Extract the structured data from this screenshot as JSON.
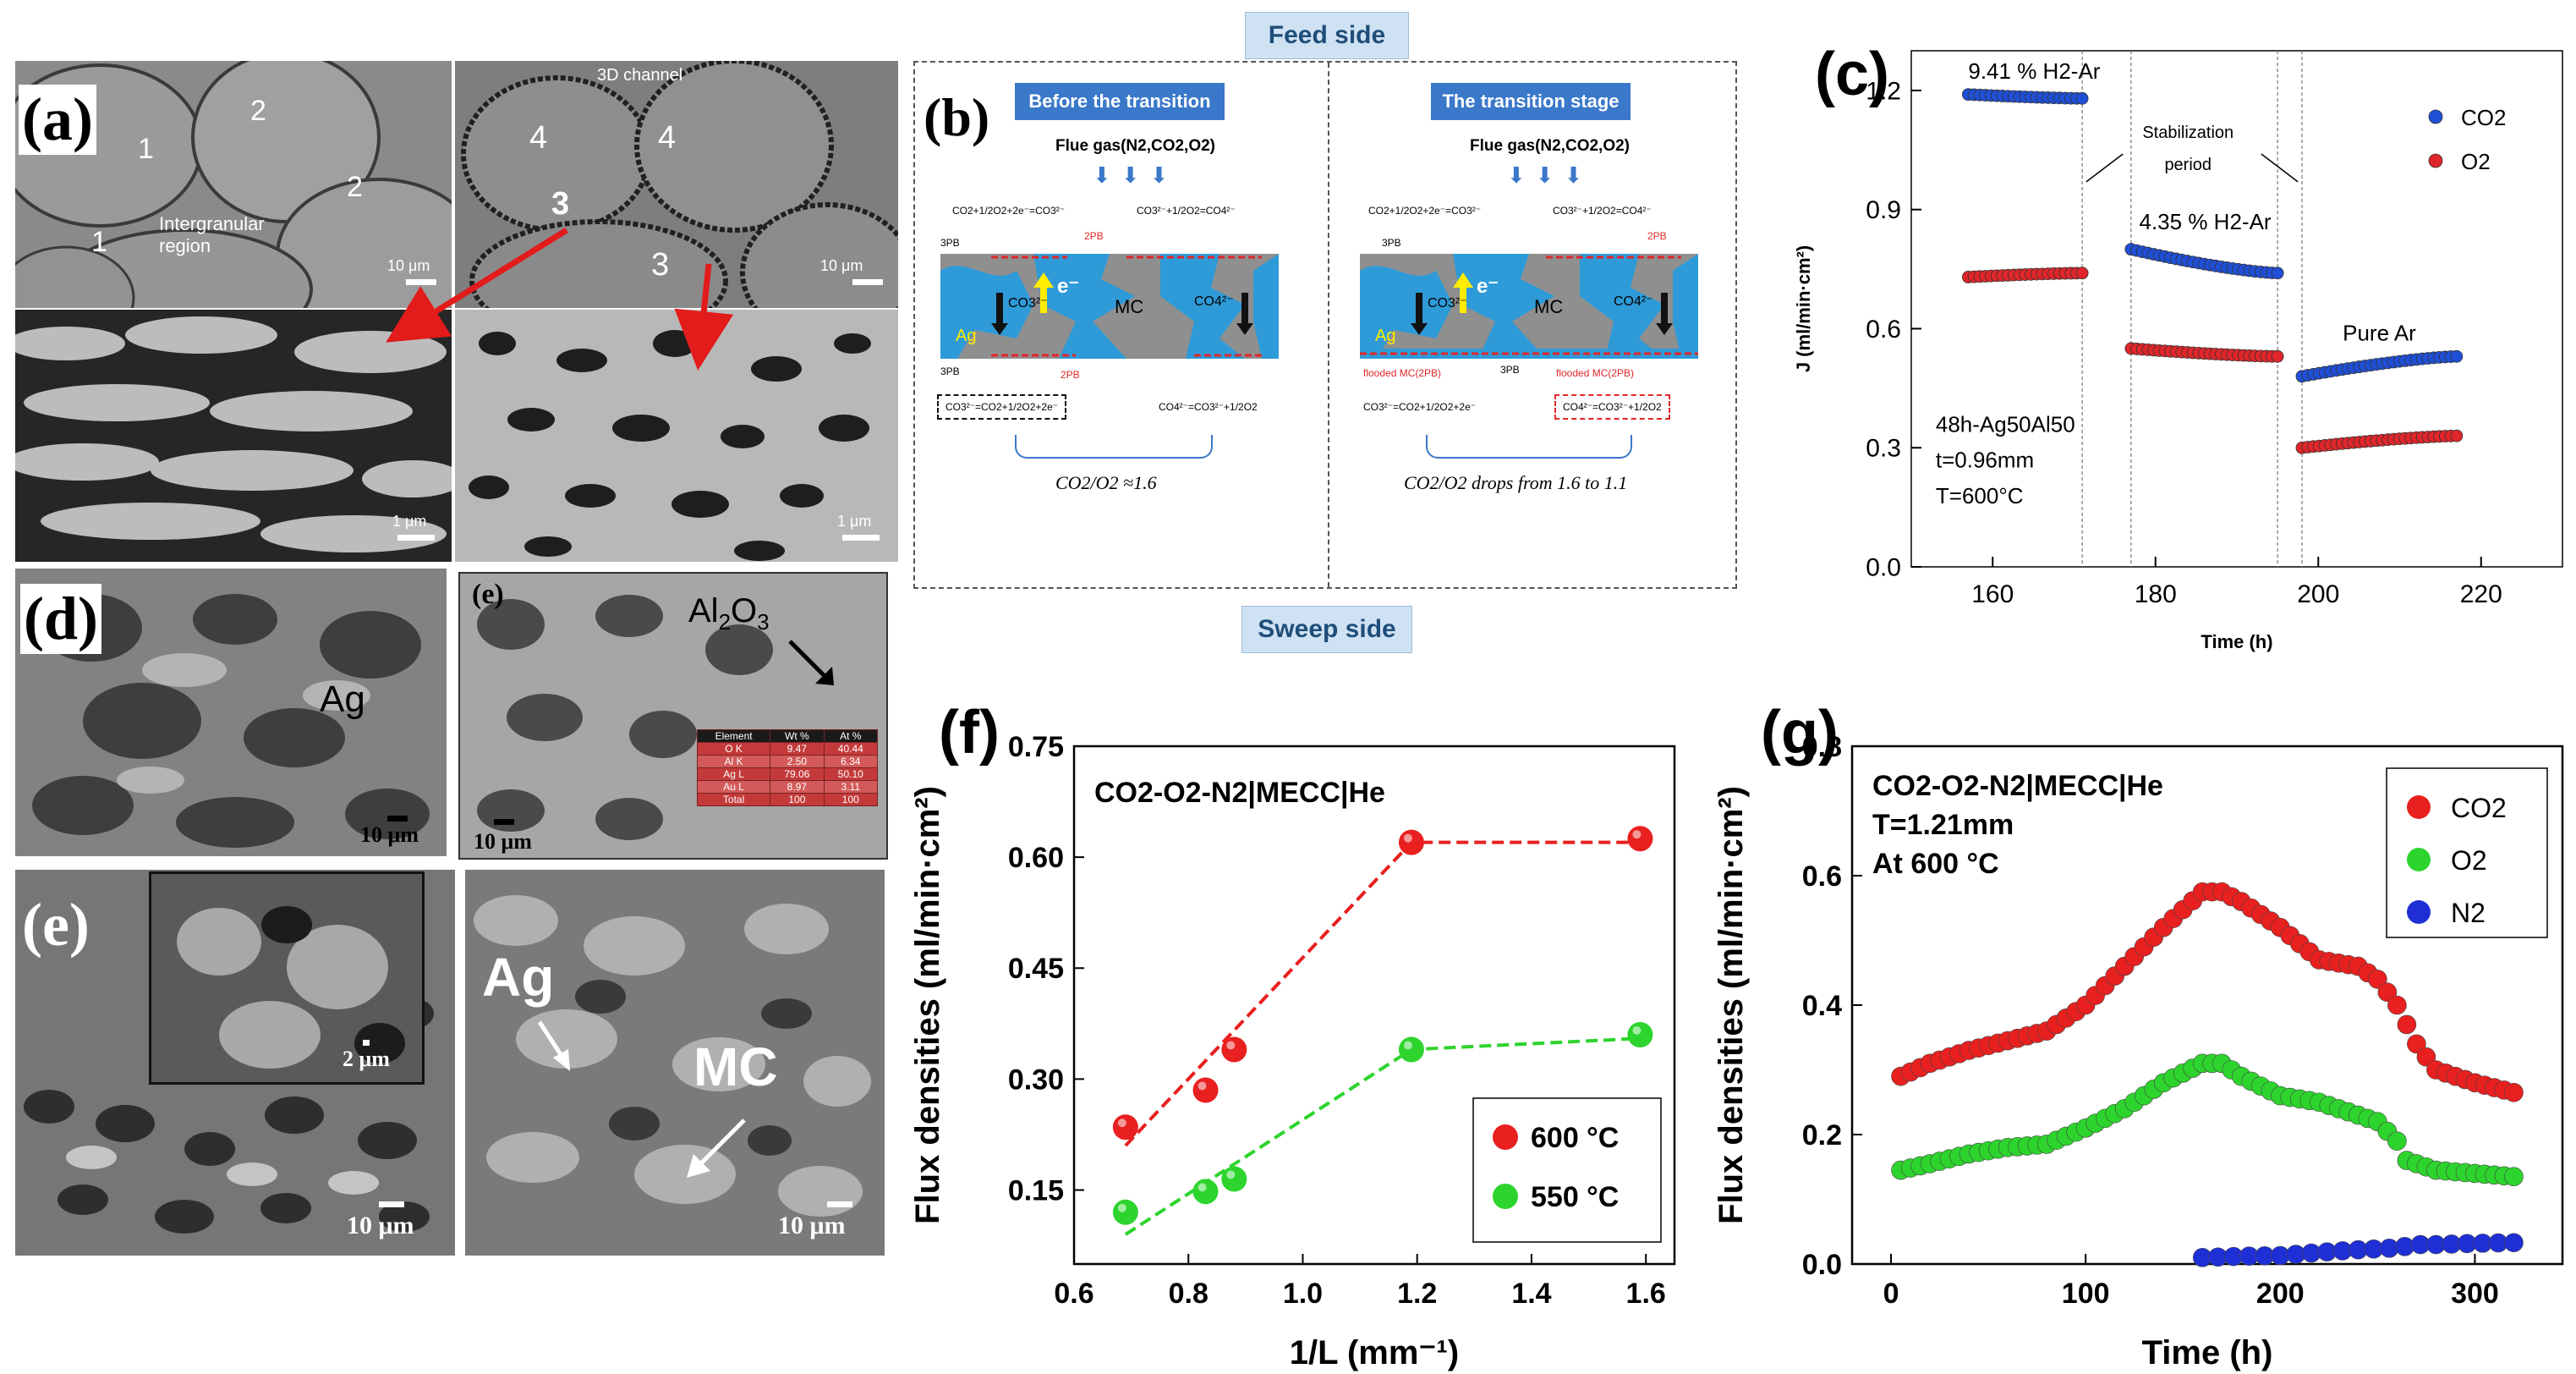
{
  "panel_labels": {
    "a": "(a)",
    "b": "(b)",
    "c": "(c)",
    "d": "(d)",
    "e": "(e)",
    "f": "(f)",
    "g": "(g)",
    "e_inset": "(e)"
  },
  "panel_a": {
    "left": {
      "labels": [
        "1",
        "2",
        "2",
        "1"
      ],
      "region": "Intergranular",
      "region2": "region",
      "scale": "10 μm"
    },
    "right": {
      "channel": "3D channel",
      "labels": [
        "4",
        "4",
        "3",
        "3"
      ],
      "scale": "10 μm"
    },
    "zoom_scales": [
      "1 μm",
      "1 μm"
    ]
  },
  "panel_d": {
    "ag": "Ag",
    "scale": "10 μm",
    "scale2": "10 μm",
    "al2o3": "Al2O3",
    "eds": {
      "headers": [
        "Element",
        "Wt %",
        "At %"
      ],
      "rows": [
        [
          "O K",
          "9.47",
          "40.44"
        ],
        [
          "Al K",
          "2.50",
          "6.34"
        ],
        [
          "Ag L",
          "79.06",
          "50.10"
        ],
        [
          "Au L",
          "8.97",
          "3.11"
        ],
        [
          "Total",
          "100",
          "100"
        ]
      ]
    }
  },
  "panel_e": {
    "inset_scale": "2 μm",
    "scale": "10 μm",
    "scale2": "10 μm",
    "ag": "Ag",
    "mc": "MC"
  },
  "panel_b": {
    "feed_side": "Feed side",
    "sweep_side": "Sweep side",
    "left_header": "Before the transition",
    "right_header": "The transition stage",
    "flue_gas": "Flue gas(N2,CO2,O2)",
    "reaction1": "CO2+1/2O2+2e⁻=CO3²⁻",
    "reaction2": "CO3²⁻+1/2O2=CO4²⁻",
    "reaction3": "CO3²⁻=CO2+1/2O2+2e⁻",
    "reaction4": "CO4²⁻=CO3²⁻+1/2O2",
    "tpb": "3PB",
    "dpb": "2PB",
    "mc": "MC",
    "ag": "Ag",
    "e": "e⁻",
    "co3": "CO3²⁻",
    "co4": "CO4²⁻",
    "flooded": "flooded MC(2PB)",
    "ratio_left": "CO2/O2 ≈1.6",
    "ratio_right": "CO2/O2 drops from 1.6 to 1.1"
  },
  "chart_data": [
    {
      "id": "c",
      "type": "scatter",
      "title": "",
      "xlabel": "Time (h)",
      "ylabel": "J (ml/min·cm²)",
      "xlim": [
        150,
        230
      ],
      "ylim": [
        0,
        1.3
      ],
      "xticks": [
        160,
        180,
        200,
        220
      ],
      "yticks": [
        0.0,
        0.3,
        0.6,
        0.9,
        1.2
      ],
      "series": [
        {
          "name": "CO2",
          "color": "#1f4fd6",
          "segments": [
            {
              "x0": 157,
              "x1": 171,
              "y0": 1.19,
              "y1": 1.18
            },
            {
              "x0": 177,
              "x1": 195,
              "y0": 0.8,
              "y1": 0.74
            },
            {
              "x0": 198,
              "x1": 217,
              "y0": 0.48,
              "y1": 0.53
            }
          ]
        },
        {
          "name": "O2",
          "color": "#e0262a",
          "segments": [
            {
              "x0": 157,
              "x1": 171,
              "y0": 0.73,
              "y1": 0.74
            },
            {
              "x0": 177,
              "x1": 195,
              "y0": 0.55,
              "y1": 0.53
            },
            {
              "x0": 198,
              "x1": 217,
              "y0": 0.3,
              "y1": 0.33
            }
          ]
        }
      ],
      "vlines": [
        171,
        177,
        195,
        198
      ],
      "annotations": {
        "h9": "9.41 % H2-Ar",
        "h4": "4.35 % H2-Ar",
        "ar": "Pure Ar",
        "stab1": "Stabilization",
        "stab2": "period",
        "info1": "48h-Ag50Al50",
        "info2": "t=0.96mm",
        "info3": "T=600°C"
      }
    },
    {
      "id": "f",
      "type": "scatter",
      "xlabel": "1/L (mm⁻¹)",
      "ylabel": "Flux densities (ml/min·cm²)",
      "xlim": [
        0.6,
        1.65
      ],
      "ylim": [
        0.05,
        0.75
      ],
      "xticks": [
        0.6,
        0.8,
        1.0,
        1.2,
        1.4,
        1.6
      ],
      "yticks": [
        0.15,
        0.3,
        0.45,
        0.6,
        0.75
      ],
      "inset_title": "CO2-O2-N2|MECC|He",
      "series": [
        {
          "name": "600 °C",
          "color": "#e8201f",
          "x": [
            0.69,
            0.83,
            0.88,
            1.19,
            1.59
          ],
          "y": [
            0.235,
            0.285,
            0.34,
            0.62,
            0.625
          ],
          "fit": [
            [
              0.69,
              0.21
            ],
            [
              1.19,
              0.62
            ],
            [
              1.59,
              0.62
            ]
          ]
        },
        {
          "name": "550 °C",
          "color": "#2dd42d",
          "x": [
            0.69,
            0.83,
            0.88,
            1.19,
            1.59
          ],
          "y": [
            0.12,
            0.148,
            0.165,
            0.34,
            0.36
          ],
          "fit": [
            [
              0.69,
              0.09
            ],
            [
              1.19,
              0.34
            ],
            [
              1.59,
              0.355
            ]
          ]
        }
      ]
    },
    {
      "id": "g",
      "type": "scatter",
      "xlabel": "Time (h)",
      "ylabel": "Flux densities (ml/min·cm²)",
      "xlim": [
        -20,
        345
      ],
      "ylim": [
        0,
        0.8
      ],
      "xticks": [
        0,
        100,
        200,
        300
      ],
      "yticks": [
        0.0,
        0.2,
        0.4,
        0.6,
        0.8
      ],
      "inset_lines": [
        "CO2-O2-N2|MECC|He",
        "T=1.21mm",
        "At 600 °C"
      ],
      "series": [
        {
          "name": "CO2",
          "color": "#e8201f",
          "x": [
            5,
            20,
            40,
            60,
            80,
            100,
            120,
            140,
            160,
            170,
            180,
            200,
            220,
            240,
            250,
            260,
            270,
            280,
            300,
            320
          ],
          "y": [
            0.29,
            0.31,
            0.33,
            0.345,
            0.36,
            0.4,
            0.46,
            0.52,
            0.575,
            0.575,
            0.56,
            0.52,
            0.47,
            0.46,
            0.44,
            0.4,
            0.34,
            0.3,
            0.28,
            0.265
          ]
        },
        {
          "name": "O2",
          "color": "#2dd42d",
          "x": [
            5,
            20,
            40,
            60,
            80,
            100,
            120,
            140,
            160,
            170,
            180,
            200,
            220,
            240,
            250,
            260,
            265,
            280,
            300,
            320
          ],
          "y": [
            0.145,
            0.155,
            0.17,
            0.18,
            0.185,
            0.21,
            0.24,
            0.28,
            0.31,
            0.31,
            0.29,
            0.26,
            0.25,
            0.23,
            0.22,
            0.19,
            0.16,
            0.145,
            0.14,
            0.135
          ]
        },
        {
          "name": "N2",
          "color": "#1f2fd6",
          "x": [
            160,
            180,
            200,
            220,
            240,
            260,
            270,
            280,
            300,
            320
          ],
          "y": [
            0.01,
            0.012,
            0.013,
            0.018,
            0.022,
            0.025,
            0.03,
            0.03,
            0.032,
            0.033
          ]
        }
      ]
    }
  ]
}
